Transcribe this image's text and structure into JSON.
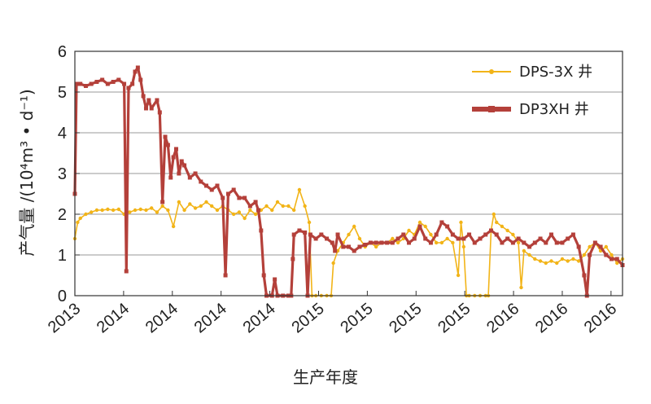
{
  "chart_data": {
    "type": "line",
    "xlabel": "生产年度",
    "ylabel": "产气量 /(10⁴m³ • d⁻¹)",
    "ylim": [
      0,
      6
    ],
    "yticks": [
      "0",
      "1",
      "2",
      "3",
      "4",
      "5",
      "6"
    ],
    "xlim": [
      0,
      100
    ],
    "xticks": [
      {
        "pos": 0,
        "label": "2013"
      },
      {
        "pos": 8.9,
        "label": "2014"
      },
      {
        "pos": 17.8,
        "label": "2014"
      },
      {
        "pos": 26.7,
        "label": "2014"
      },
      {
        "pos": 35.6,
        "label": "2014"
      },
      {
        "pos": 44.5,
        "label": "2015"
      },
      {
        "pos": 53.4,
        "label": "2015"
      },
      {
        "pos": 62.3,
        "label": "2015"
      },
      {
        "pos": 71.2,
        "label": "2015"
      },
      {
        "pos": 80.1,
        "label": "2016"
      },
      {
        "pos": 89.0,
        "label": "2016"
      },
      {
        "pos": 97.9,
        "label": "2016"
      }
    ],
    "grid": "horizontal",
    "legend_position": "top-right",
    "series": [
      {
        "name": "DPS-3X 井",
        "color": "#f2b418",
        "marker": "dot",
        "points": [
          [
            0,
            1.4
          ],
          [
            0.5,
            1.8
          ],
          [
            1,
            1.9
          ],
          [
            2,
            2.0
          ],
          [
            3,
            2.05
          ],
          [
            4,
            2.1
          ],
          [
            5,
            2.1
          ],
          [
            6,
            2.12
          ],
          [
            7,
            2.1
          ],
          [
            8,
            2.12
          ],
          [
            9,
            2.0
          ],
          [
            10,
            2.05
          ],
          [
            11,
            2.1
          ],
          [
            12,
            2.12
          ],
          [
            13,
            2.1
          ],
          [
            14,
            2.15
          ],
          [
            15,
            2.05
          ],
          [
            16,
            2.2
          ],
          [
            17,
            2.1
          ],
          [
            18,
            1.7
          ],
          [
            19,
            2.3
          ],
          [
            20,
            2.1
          ],
          [
            21,
            2.25
          ],
          [
            22,
            2.15
          ],
          [
            23,
            2.2
          ],
          [
            24,
            2.3
          ],
          [
            25,
            2.2
          ],
          [
            26,
            2.1
          ],
          [
            27,
            2.2
          ],
          [
            28,
            2.1
          ],
          [
            29,
            2.0
          ],
          [
            30,
            2.05
          ],
          [
            31,
            1.9
          ],
          [
            32,
            2.1
          ],
          [
            33,
            2.0
          ],
          [
            34,
            2.1
          ],
          [
            35,
            2.2
          ],
          [
            36,
            2.1
          ],
          [
            37,
            2.3
          ],
          [
            38,
            2.2
          ],
          [
            39,
            2.2
          ],
          [
            40,
            2.1
          ],
          [
            41,
            2.6
          ],
          [
            42,
            2.2
          ],
          [
            42.8,
            1.8
          ],
          [
            43.3,
            0
          ],
          [
            44,
            0
          ],
          [
            45,
            0
          ],
          [
            46,
            0
          ],
          [
            46.8,
            0
          ],
          [
            47.2,
            0.8
          ],
          [
            48,
            1.1
          ],
          [
            49,
            1.3
          ],
          [
            50,
            1.5
          ],
          [
            51,
            1.7
          ],
          [
            52,
            1.4
          ],
          [
            53,
            1.2
          ],
          [
            54,
            1.3
          ],
          [
            55,
            1.2
          ],
          [
            56,
            1.3
          ],
          [
            57,
            1.3
          ],
          [
            58,
            1.4
          ],
          [
            59,
            1.3
          ],
          [
            60,
            1.4
          ],
          [
            61,
            1.6
          ],
          [
            62,
            1.5
          ],
          [
            63,
            1.8
          ],
          [
            64,
            1.7
          ],
          [
            65,
            1.5
          ],
          [
            66,
            1.3
          ],
          [
            67,
            1.3
          ],
          [
            68,
            1.4
          ],
          [
            69,
            1.3
          ],
          [
            70,
            0.5
          ],
          [
            70.5,
            1.8
          ],
          [
            71,
            1.2
          ],
          [
            71.5,
            0
          ],
          [
            72,
            0
          ],
          [
            73,
            0
          ],
          [
            74,
            0
          ],
          [
            75,
            0
          ],
          [
            75.5,
            0
          ],
          [
            76,
            1.6
          ],
          [
            76.5,
            2.0
          ],
          [
            77,
            1.8
          ],
          [
            78,
            1.7
          ],
          [
            79,
            1.6
          ],
          [
            80,
            1.5
          ],
          [
            81,
            1.3
          ],
          [
            81.5,
            0.2
          ],
          [
            82,
            1.1
          ],
          [
            83,
            1.0
          ],
          [
            84,
            0.9
          ],
          [
            85,
            0.85
          ],
          [
            86,
            0.8
          ],
          [
            87,
            0.85
          ],
          [
            88,
            0.8
          ],
          [
            89,
            0.9
          ],
          [
            90,
            0.85
          ],
          [
            91,
            0.9
          ],
          [
            92,
            0.85
          ],
          [
            93,
            1.0
          ],
          [
            94,
            1.2
          ],
          [
            95,
            1.3
          ],
          [
            96,
            1.1
          ],
          [
            97,
            1.2
          ],
          [
            98,
            1.0
          ],
          [
            99,
            0.8
          ],
          [
            100,
            0.9
          ]
        ]
      },
      {
        "name": "DP3XH 井",
        "color": "#b4403a",
        "marker": "square",
        "points": [
          [
            0,
            2.5
          ],
          [
            0.3,
            5.2
          ],
          [
            1,
            5.2
          ],
          [
            2,
            5.15
          ],
          [
            3,
            5.2
          ],
          [
            4,
            5.25
          ],
          [
            5,
            5.3
          ],
          [
            6,
            5.2
          ],
          [
            7,
            5.25
          ],
          [
            8,
            5.3
          ],
          [
            9,
            5.2
          ],
          [
            9.4,
            0.6
          ],
          [
            9.8,
            5.1
          ],
          [
            10.5,
            5.2
          ],
          [
            11,
            5.5
          ],
          [
            11.5,
            5.6
          ],
          [
            12,
            5.3
          ],
          [
            12.5,
            4.9
          ],
          [
            13,
            4.6
          ],
          [
            13.5,
            4.8
          ],
          [
            14,
            4.6
          ],
          [
            15,
            4.8
          ],
          [
            15.5,
            4.5
          ],
          [
            16,
            2.3
          ],
          [
            16.5,
            3.9
          ],
          [
            17,
            3.7
          ],
          [
            17.5,
            2.9
          ],
          [
            18,
            3.4
          ],
          [
            18.5,
            3.6
          ],
          [
            19,
            3.0
          ],
          [
            19.5,
            3.3
          ],
          [
            20,
            3.2
          ],
          [
            21,
            2.9
          ],
          [
            22,
            3.0
          ],
          [
            23,
            2.8
          ],
          [
            24,
            2.7
          ],
          [
            25,
            2.6
          ],
          [
            26,
            2.7
          ],
          [
            27,
            2.4
          ],
          [
            27.5,
            0.5
          ],
          [
            28,
            2.5
          ],
          [
            29,
            2.6
          ],
          [
            30,
            2.4
          ],
          [
            31,
            2.4
          ],
          [
            32,
            2.2
          ],
          [
            33,
            2.3
          ],
          [
            33.5,
            2.1
          ],
          [
            34,
            1.6
          ],
          [
            34.5,
            0.5
          ],
          [
            35,
            0
          ],
          [
            36,
            0
          ],
          [
            36.5,
            0.4
          ],
          [
            37,
            0
          ],
          [
            38,
            0
          ],
          [
            39,
            0
          ],
          [
            39.5,
            0
          ],
          [
            39.8,
            0.9
          ],
          [
            40,
            1.5
          ],
          [
            41,
            1.6
          ],
          [
            42,
            1.55
          ],
          [
            42.5,
            0
          ],
          [
            43,
            1.5
          ],
          [
            44,
            1.4
          ],
          [
            45,
            1.5
          ],
          [
            46,
            1.4
          ],
          [
            47,
            1.3
          ],
          [
            47.5,
            1.1
          ],
          [
            48,
            1.5
          ],
          [
            49,
            1.2
          ],
          [
            50,
            1.2
          ],
          [
            51,
            1.1
          ],
          [
            52,
            1.2
          ],
          [
            53,
            1.25
          ],
          [
            54,
            1.3
          ],
          [
            55,
            1.3
          ],
          [
            56,
            1.3
          ],
          [
            57,
            1.3
          ],
          [
            58,
            1.3
          ],
          [
            59,
            1.4
          ],
          [
            60,
            1.5
          ],
          [
            61,
            1.3
          ],
          [
            62,
            1.4
          ],
          [
            63,
            1.7
          ],
          [
            64,
            1.4
          ],
          [
            65,
            1.3
          ],
          [
            66,
            1.5
          ],
          [
            67,
            1.8
          ],
          [
            68,
            1.7
          ],
          [
            69,
            1.5
          ],
          [
            70,
            1.4
          ],
          [
            71,
            1.4
          ],
          [
            72,
            1.5
          ],
          [
            73,
            1.3
          ],
          [
            74,
            1.4
          ],
          [
            75,
            1.5
          ],
          [
            76,
            1.6
          ],
          [
            77,
            1.5
          ],
          [
            78,
            1.3
          ],
          [
            79,
            1.4
          ],
          [
            80,
            1.3
          ],
          [
            81,
            1.4
          ],
          [
            82,
            1.3
          ],
          [
            83,
            1.2
          ],
          [
            84,
            1.3
          ],
          [
            85,
            1.4
          ],
          [
            86,
            1.3
          ],
          [
            87,
            1.5
          ],
          [
            88,
            1.3
          ],
          [
            89,
            1.3
          ],
          [
            90,
            1.4
          ],
          [
            91,
            1.5
          ],
          [
            92,
            1.2
          ],
          [
            93,
            0.5
          ],
          [
            93.5,
            0
          ],
          [
            94,
            1.0
          ],
          [
            95,
            1.3
          ],
          [
            96,
            1.2
          ],
          [
            97,
            1.0
          ],
          [
            98,
            0.9
          ],
          [
            99,
            0.9
          ],
          [
            100,
            0.75
          ]
        ]
      }
    ]
  }
}
